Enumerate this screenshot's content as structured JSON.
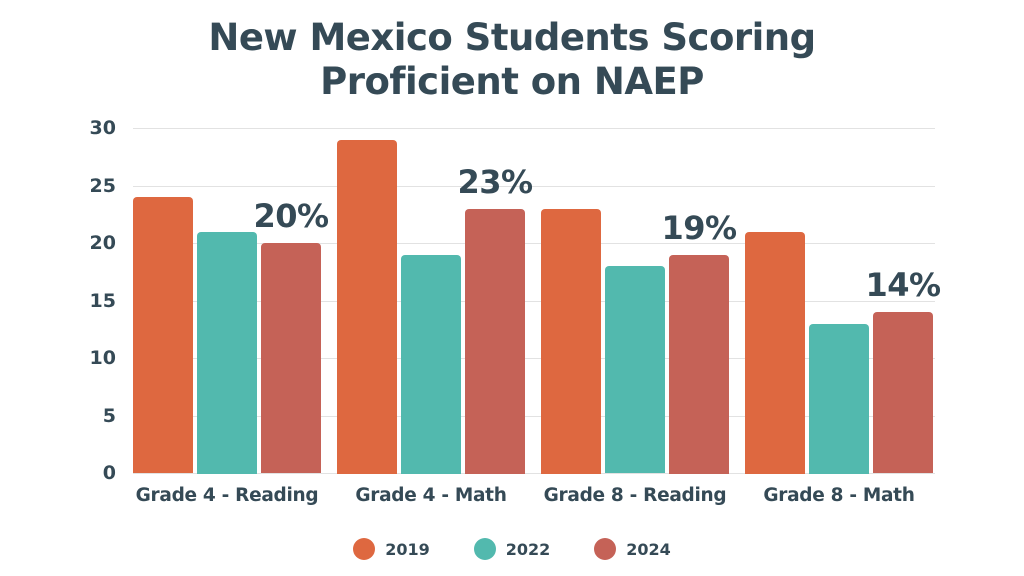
{
  "chart_data": {
    "type": "bar",
    "title": "New Mexico Students Scoring Proficient on NAEP",
    "title_lines": [
      "New Mexico Students Scoring",
      "Proficient on NAEP"
    ],
    "xlabel": "",
    "ylabel": "",
    "ylim": [
      0,
      30
    ],
    "yticks": [
      0,
      5,
      10,
      15,
      20,
      25,
      30
    ],
    "ytick_labels": [
      "0",
      "5",
      "10",
      "15",
      "20",
      "25",
      "30"
    ],
    "grid": true,
    "legend_position": "bottom",
    "categories": [
      "Grade 4 - Reading",
      "Grade 4 - Math",
      "Grade 8 - Reading",
      "Grade 8 - Math"
    ],
    "series": [
      {
        "name": "2019",
        "color": "#de6840",
        "values": [
          24,
          29,
          23,
          21
        ]
      },
      {
        "name": "2022",
        "color": "#52b9ae",
        "values": [
          21,
          19,
          18,
          13
        ]
      },
      {
        "name": "2024",
        "color": "#c56257",
        "values": [
          20,
          23,
          19,
          14
        ]
      }
    ],
    "annotations": [
      "20%",
      "23%",
      "19%",
      "14%"
    ]
  }
}
